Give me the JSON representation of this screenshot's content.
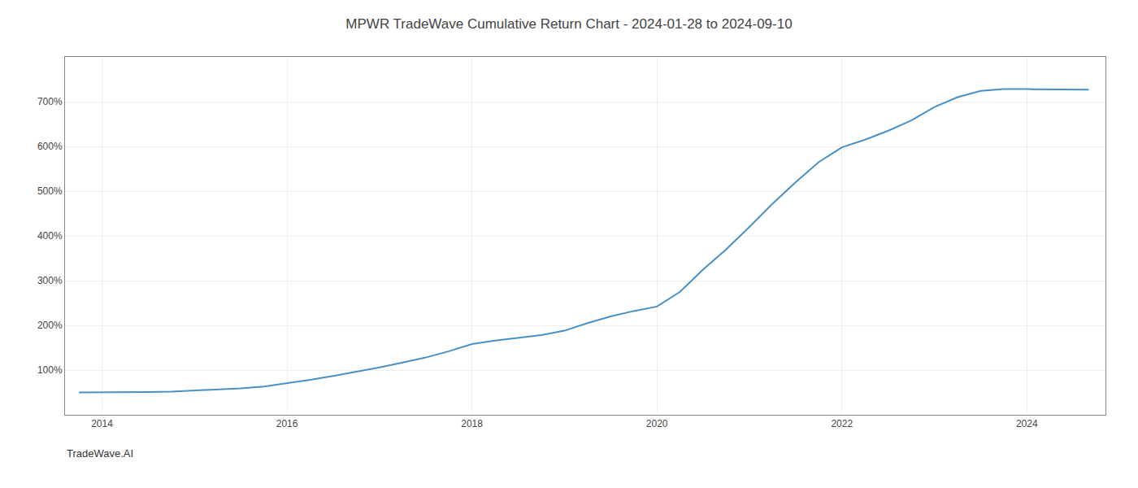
{
  "chart_data": {
    "type": "line",
    "title": "MPWR TradeWave Cumulative Return Chart - 2024-01-28 to 2024-09-10",
    "annotations": [
      "TradeWave.AI"
    ],
    "x": [
      2013.75,
      2014.0,
      2014.25,
      2014.5,
      2014.75,
      2015.0,
      2015.25,
      2015.5,
      2015.75,
      2016.0,
      2016.25,
      2016.5,
      2016.75,
      2017.0,
      2017.25,
      2017.5,
      2017.75,
      2018.0,
      2018.25,
      2018.5,
      2018.75,
      2019.0,
      2019.25,
      2019.5,
      2019.75,
      2020.0,
      2020.25,
      2020.5,
      2020.75,
      2021.0,
      2021.25,
      2021.5,
      2021.75,
      2022.0,
      2022.25,
      2022.5,
      2022.75,
      2023.0,
      2023.25,
      2023.5,
      2023.75,
      2024.0,
      2024.25,
      2024.5,
      2024.67
    ],
    "values": [
      50,
      50,
      50,
      51,
      52,
      54,
      56,
      59,
      63,
      70,
      78,
      87,
      96,
      106,
      117,
      128,
      142,
      158,
      166,
      172,
      178,
      188,
      205,
      220,
      232,
      242,
      275,
      325,
      370,
      420,
      472,
      520,
      565,
      598,
      615,
      635,
      658,
      688,
      710,
      724,
      728,
      728,
      728,
      727,
      727
    ],
    "color": "#4a90c4",
    "xlim": [
      2013.6,
      2024.85
    ],
    "xticks": [
      2014,
      2016,
      2018,
      2020,
      2022,
      2024
    ],
    "ylim": [
      0,
      800
    ],
    "yticks": [
      {
        "value": 100,
        "label": "100%"
      },
      {
        "value": 200,
        "label": "200%"
      },
      {
        "value": 300,
        "label": "300%"
      },
      {
        "value": 400,
        "label": "400%"
      },
      {
        "value": 500,
        "label": "500%"
      },
      {
        "value": 600,
        "label": "600%"
      },
      {
        "value": 700,
        "label": "700%"
      }
    ],
    "grid": true
  }
}
